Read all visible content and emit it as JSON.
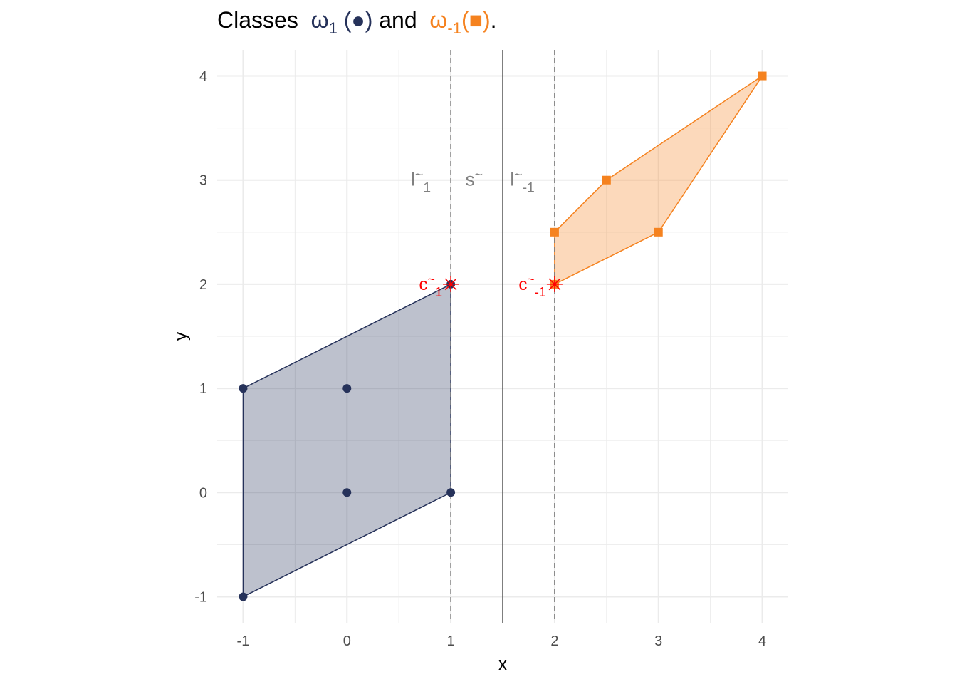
{
  "chart_data": {
    "type": "scatter",
    "title": {
      "prefix": "Classes",
      "class1_symbol": "ω",
      "class1_sub": "1",
      "class1_marker": "(●)",
      "joiner": "and",
      "class2_symbol": "ω",
      "class2_sub": "-1",
      "class2_marker": "(■)",
      "suffix": "."
    },
    "xlabel": "x",
    "ylabel": "y",
    "xlim": [
      -1.25,
      4.25
    ],
    "ylim": [
      -1.25,
      4.25
    ],
    "x_ticks": [
      -1,
      0,
      1,
      2,
      3,
      4
    ],
    "y_ticks": [
      -1,
      0,
      1,
      2,
      3,
      4
    ],
    "grid": true,
    "colors": {
      "class1": "#26325a",
      "class2": "#f5821f",
      "highlight": "#ff0000",
      "line_label": "#808080",
      "grid": "#ebebeb"
    },
    "series": [
      {
        "points": [
          [
            -1,
            -1
          ],
          [
            -1,
            1
          ],
          [
            0,
            0
          ],
          [
            0,
            1
          ],
          [
            1,
            0
          ],
          [
            1,
            2
          ]
        ],
        "hull": [
          [
            -1,
            -1
          ],
          [
            1,
            0
          ],
          [
            1,
            2
          ],
          [
            -1,
            1
          ]
        ],
        "marker": "circle"
      },
      {
        "points": [
          [
            2,
            2
          ],
          [
            2,
            2.5
          ],
          [
            2.5,
            3
          ],
          [
            3,
            2.5
          ],
          [
            4,
            4
          ]
        ],
        "hull": [
          [
            2,
            2
          ],
          [
            3,
            2.5
          ],
          [
            4,
            4
          ],
          [
            2.5,
            3
          ],
          [
            2,
            2.5
          ]
        ],
        "marker": "square"
      }
    ],
    "vlines": [
      {
        "x": 1,
        "style": "dashed",
        "label": "l",
        "tilde": "~",
        "sub": "1",
        "label_y": 3
      },
      {
        "x": 1.5,
        "style": "solid",
        "label": "s",
        "tilde": "~",
        "sub": "",
        "label_y": 3
      },
      {
        "x": 2,
        "style": "dashed",
        "label": "l",
        "tilde": "~",
        "sub": "-1",
        "label_y": 3
      }
    ],
    "highlight_points": [
      {
        "x": 1,
        "y": 2,
        "label": "c",
        "tilde": "~",
        "sub": "1"
      },
      {
        "x": 2,
        "y": 2,
        "label": "c",
        "tilde": "~",
        "sub": "-1"
      }
    ]
  }
}
